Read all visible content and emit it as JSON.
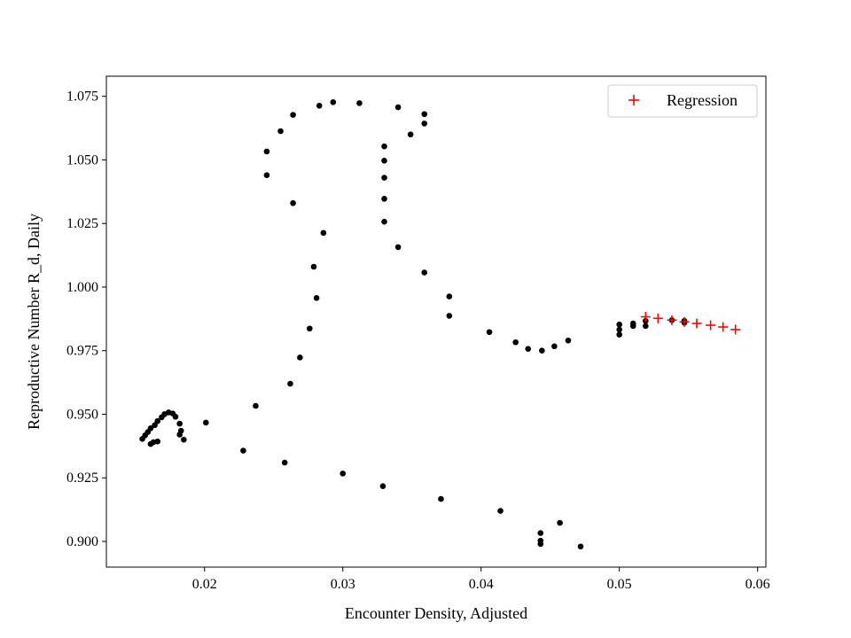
{
  "chart_data": {
    "type": "scatter",
    "title": "",
    "xlabel": "Encounter Density, Adjusted",
    "ylabel": "Reproductive Number R_d, Daily",
    "xlim": [
      0.0129,
      0.0606
    ],
    "ylim": [
      0.8899,
      1.0829
    ],
    "grid": false,
    "legend_position": "top-right",
    "x_ticks": [
      {
        "value": 0.02,
        "label": "0.02"
      },
      {
        "value": 0.03,
        "label": "0.03"
      },
      {
        "value": 0.04,
        "label": "0.04"
      },
      {
        "value": 0.05,
        "label": "0.05"
      },
      {
        "value": 0.06,
        "label": "0.06"
      }
    ],
    "y_ticks": [
      {
        "value": 0.9,
        "label": "0.900"
      },
      {
        "value": 0.925,
        "label": "0.925"
      },
      {
        "value": 0.95,
        "label": "0.950"
      },
      {
        "value": 0.975,
        "label": "0.975"
      },
      {
        "value": 1.0,
        "label": "1.000"
      },
      {
        "value": 1.025,
        "label": "1.025"
      },
      {
        "value": 1.05,
        "label": "1.050"
      },
      {
        "value": 1.075,
        "label": "1.075"
      }
    ],
    "series": [
      {
        "name": "",
        "marker": "dot",
        "color": "#000000",
        "points": [
          [
            0.0155,
            0.9403
          ],
          [
            0.0157,
            0.9417
          ],
          [
            0.0159,
            0.943
          ],
          [
            0.0161,
            0.9445
          ],
          [
            0.0164,
            0.9457
          ],
          [
            0.0166,
            0.9473
          ],
          [
            0.0169,
            0.9488
          ],
          [
            0.0171,
            0.95
          ],
          [
            0.0174,
            0.9507
          ],
          [
            0.0177,
            0.9503
          ],
          [
            0.0179,
            0.949
          ],
          [
            0.0182,
            0.9463
          ],
          [
            0.0183,
            0.9435
          ],
          [
            0.0182,
            0.942
          ],
          [
            0.0185,
            0.94
          ],
          [
            0.0166,
            0.9393
          ],
          [
            0.0163,
            0.939
          ],
          [
            0.0161,
            0.9383
          ],
          [
            0.0201,
            0.9467
          ],
          [
            0.0228,
            0.9357
          ],
          [
            0.0258,
            0.931
          ],
          [
            0.03,
            0.9267
          ],
          [
            0.0329,
            0.9217
          ],
          [
            0.0371,
            0.9167
          ],
          [
            0.0414,
            0.912
          ],
          [
            0.0443,
            0.9033
          ],
          [
            0.0443,
            0.9003
          ],
          [
            0.0443,
            0.899
          ],
          [
            0.0457,
            0.9073
          ],
          [
            0.0472,
            0.898
          ],
          [
            0.0237,
            0.9533
          ],
          [
            0.0262,
            0.962
          ],
          [
            0.0269,
            0.9723
          ],
          [
            0.0276,
            0.9837
          ],
          [
            0.0279,
            1.008
          ],
          [
            0.0281,
            0.9957
          ],
          [
            0.0286,
            1.0213
          ],
          [
            0.0264,
            1.033
          ],
          [
            0.0245,
            1.044
          ],
          [
            0.0245,
            1.0533
          ],
          [
            0.0255,
            1.0613
          ],
          [
            0.0264,
            1.0677
          ],
          [
            0.0283,
            1.0713
          ],
          [
            0.0293,
            1.0727
          ],
          [
            0.0312,
            1.0723
          ],
          [
            0.034,
            1.0707
          ],
          [
            0.0359,
            1.068
          ],
          [
            0.0359,
            1.0643
          ],
          [
            0.0349,
            1.06
          ],
          [
            0.033,
            1.0553
          ],
          [
            0.033,
            1.0497
          ],
          [
            0.033,
            1.043
          ],
          [
            0.033,
            1.0347
          ],
          [
            0.033,
            1.0257
          ],
          [
            0.034,
            1.0157
          ],
          [
            0.0359,
            1.0057
          ],
          [
            0.0377,
            0.9963
          ],
          [
            0.0377,
            0.9887
          ],
          [
            0.0406,
            0.9823
          ],
          [
            0.0425,
            0.9783
          ],
          [
            0.0434,
            0.9757
          ],
          [
            0.0444,
            0.975
          ],
          [
            0.0453,
            0.9767
          ],
          [
            0.0463,
            0.979
          ],
          [
            0.05,
            0.9853
          ],
          [
            0.05,
            0.9833
          ],
          [
            0.05,
            0.9813
          ],
          [
            0.051,
            0.9847
          ],
          [
            0.051,
            0.9857
          ],
          [
            0.0519,
            0.9847
          ],
          [
            0.0519,
            0.9867
          ],
          [
            0.0538,
            0.987
          ],
          [
            0.0547,
            0.9867
          ],
          [
            0.0547,
            0.986
          ]
        ]
      },
      {
        "name": "Regression",
        "marker": "plus",
        "color": "#ff0000",
        "points": [
          [
            0.0519,
            0.9883
          ],
          [
            0.0528,
            0.9877
          ],
          [
            0.0538,
            0.987
          ],
          [
            0.0547,
            0.9863
          ],
          [
            0.0556,
            0.9857
          ],
          [
            0.0566,
            0.985
          ],
          [
            0.0575,
            0.9843
          ],
          [
            0.0584,
            0.9833
          ]
        ]
      }
    ]
  }
}
